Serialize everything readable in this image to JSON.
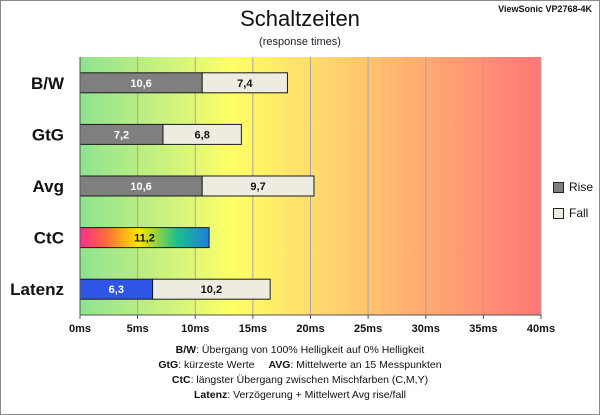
{
  "header": {
    "title": "Schaltzeiten",
    "subtitle": "(response times)",
    "brand": "ViewSonic VP2768-4K"
  },
  "legend": {
    "rise": "Rise",
    "fall": "Fall"
  },
  "notes": {
    "bw_key": "B/W",
    "bw_text": ":  Übergang von 100% Helligkeit auf 0% Helligkeit",
    "gtg_key": "GtG",
    "gtg_text": ": kürzeste  Werte",
    "avg_key": "AVG",
    "avg_text": ":  Mittelwerte  an 15 Messpunkten",
    "ctc_key": "CtC",
    "ctc_text": ": längster Übergang  zwischen Mischfarben (C,M,Y)",
    "lat_key": "Latenz",
    "lat_text": ": Verzögerung  + Mittelwert  Avg rise/fall"
  },
  "colors": {
    "rise": "#7f7f7f",
    "fall": "#eeece1",
    "latency": "#2f55e6",
    "background_gradient": [
      "#8ee38e",
      "#ffff66",
      "#ffa07a",
      "#ff7777"
    ]
  },
  "chart_data": {
    "type": "bar",
    "orientation": "horizontal",
    "stacked": true,
    "title": "Schaltzeiten",
    "subtitle": "(response times)",
    "categories": [
      "B/W",
      "GtG",
      "Avg",
      "CtC",
      "Latenz"
    ],
    "xlim": [
      0,
      40
    ],
    "xticks": [
      "0ms",
      "5ms",
      "10ms",
      "15ms",
      "20ms",
      "25ms",
      "30ms",
      "35ms",
      "40ms"
    ],
    "grid": true,
    "legend_position": "right",
    "series": [
      {
        "name": "Rise",
        "values": [
          10.6,
          7.2,
          10.6,
          null,
          null
        ],
        "labels": [
          "10,6",
          "7,2",
          "10,6",
          "",
          ""
        ]
      },
      {
        "name": "Fall",
        "values": [
          7.4,
          6.8,
          9.7,
          null,
          null
        ],
        "labels": [
          "7,4",
          "6,8",
          "9,7",
          "",
          ""
        ]
      }
    ],
    "ctc": {
      "value": 11.2,
      "label": "11,2"
    },
    "latenz": {
      "latency": 6.3,
      "latency_label": "6,3",
      "avg": 10.2,
      "avg_label": "10,2"
    }
  }
}
